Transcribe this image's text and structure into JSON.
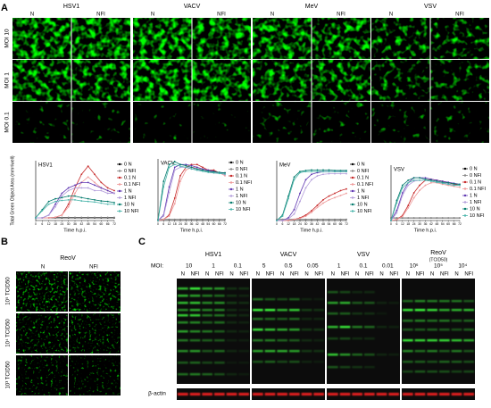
{
  "panels": {
    "a": "A",
    "b": "B",
    "c": "C"
  },
  "panel_a": {
    "viruses": [
      "HSV1",
      "VACV",
      "MeV",
      "VSV"
    ],
    "conditions": [
      "N",
      "NFI"
    ],
    "rows": [
      "MOI 10",
      "MOI 1",
      "MOI 0.1"
    ]
  },
  "panel_b": {
    "virus": "ReoV",
    "conditions": [
      "N",
      "NFI"
    ],
    "rows": [
      "10⁵ TCID50",
      "10⁴ TCID50",
      "10³ TCID50"
    ]
  },
  "blot": {
    "moi_label": "MOI:",
    "lane_labels": [
      "N",
      "NFI"
    ],
    "loading": "β-actin",
    "viruses": [
      {
        "name": "HSV1",
        "mois": [
          "10",
          "1",
          "0.1"
        ]
      },
      {
        "name": "VACV",
        "mois": [
          "5",
          "0.5",
          "0.05"
        ]
      },
      {
        "name": "VSV",
        "mois": [
          "1",
          "0.1",
          "0.01"
        ]
      },
      {
        "name": "ReoV",
        "unit": "(TCID50)",
        "mois": [
          "10⁶",
          "10⁵",
          "10⁴"
        ]
      }
    ]
  },
  "chart_data": [
    {
      "type": "line",
      "title": "HSV1",
      "y_label": "Total Green Object Area (mm²/well)",
      "x_label": "Time h.p.i.",
      "x": [
        0,
        6,
        12,
        18,
        24,
        30,
        36,
        42,
        48,
        54,
        60,
        66,
        72
      ],
      "xlim": [
        0,
        72
      ],
      "xticks": [
        0,
        6,
        12,
        18,
        24,
        30,
        36,
        42,
        48,
        54,
        60,
        66,
        72
      ],
      "ylim": [
        0,
        1.1
      ],
      "series": [
        {
          "name": "0 N",
          "color": "#000000",
          "values": [
            0.05,
            0.05,
            0.05,
            0.05,
            0.05,
            0.05,
            0.05,
            0.05,
            0.05,
            0.05,
            0.05,
            0.05,
            0.05
          ]
        },
        {
          "name": "0 NFI",
          "color": "#888888",
          "values": [
            0.05,
            0.05,
            0.05,
            0.06,
            0.06,
            0.06,
            0.06,
            0.06,
            0.06,
            0.06,
            0.06,
            0.06,
            0.06
          ]
        },
        {
          "name": "0.1 N",
          "color": "#c62828",
          "values": [
            0.05,
            0.05,
            0.05,
            0.06,
            0.1,
            0.3,
            0.6,
            0.85,
            1.0,
            0.85,
            0.7,
            0.6,
            0.55
          ]
        },
        {
          "name": "0.1 NFI",
          "color": "#ef9a9a",
          "values": [
            0.05,
            0.05,
            0.05,
            0.06,
            0.1,
            0.25,
            0.5,
            0.7,
            0.8,
            0.7,
            0.6,
            0.55,
            0.5
          ]
        },
        {
          "name": "1 N",
          "color": "#5e35b1",
          "values": [
            0.05,
            0.05,
            0.1,
            0.3,
            0.5,
            0.6,
            0.65,
            0.7,
            0.7,
            0.65,
            0.6,
            0.55,
            0.5
          ]
        },
        {
          "name": "1 NFI",
          "color": "#b39ddb",
          "values": [
            0.05,
            0.05,
            0.1,
            0.25,
            0.45,
            0.55,
            0.6,
            0.6,
            0.6,
            0.55,
            0.55,
            0.5,
            0.5
          ]
        },
        {
          "name": "10 N",
          "color": "#00796b",
          "values": [
            0.05,
            0.2,
            0.35,
            0.4,
            0.42,
            0.45,
            0.45,
            0.42,
            0.4,
            0.38,
            0.36,
            0.35,
            0.33
          ]
        },
        {
          "name": "10 NFI",
          "color": "#4db6ac",
          "values": [
            0.05,
            0.18,
            0.3,
            0.35,
            0.37,
            0.38,
            0.38,
            0.36,
            0.35,
            0.34,
            0.32,
            0.3,
            0.3
          ]
        }
      ]
    },
    {
      "type": "line",
      "title": "VACV",
      "x_label": "Time h.p.i.",
      "x": [
        0,
        6,
        12,
        18,
        24,
        30,
        36,
        42,
        48,
        54,
        60,
        66,
        72
      ],
      "xlim": [
        0,
        72
      ],
      "xticks": [
        0,
        6,
        12,
        18,
        24,
        30,
        36,
        42,
        48,
        54,
        60,
        66,
        72
      ],
      "ylim": [
        0,
        1.1
      ],
      "series": [
        {
          "name": "0 N",
          "color": "#000000",
          "values": [
            0.02,
            0.02,
            0.02,
            0.02,
            0.02,
            0.02,
            0.02,
            0.02,
            0.02,
            0.02,
            0.02,
            0.02,
            0.02
          ]
        },
        {
          "name": "0 NFI",
          "color": "#888888",
          "values": [
            0.02,
            0.02,
            0.02,
            0.02,
            0.02,
            0.02,
            0.02,
            0.02,
            0.02,
            0.02,
            0.02,
            0.02,
            0.02
          ]
        },
        {
          "name": "0.1 N",
          "color": "#c62828",
          "values": [
            0,
            0.02,
            0.1,
            0.4,
            0.8,
            0.95,
            1,
            1,
            0.95,
            0.9,
            0.9,
            0.85,
            0.85
          ]
        },
        {
          "name": "0.1 NFI",
          "color": "#ef9a9a",
          "values": [
            0,
            0.02,
            0.08,
            0.3,
            0.7,
            0.9,
            0.95,
            0.95,
            0.9,
            0.9,
            0.85,
            0.85,
            0.8
          ]
        },
        {
          "name": "1 N",
          "color": "#5e35b1",
          "values": [
            0,
            0.1,
            0.6,
            0.95,
            1,
            1,
            0.98,
            0.95,
            0.92,
            0.9,
            0.88,
            0.85,
            0.85
          ]
        },
        {
          "name": "1 NFI",
          "color": "#b39ddb",
          "values": [
            0,
            0.08,
            0.5,
            0.9,
            0.95,
            0.95,
            0.95,
            0.9,
            0.9,
            0.88,
            0.85,
            0.85,
            0.82
          ]
        },
        {
          "name": "10 N",
          "color": "#00796b",
          "values": [
            0,
            0.7,
            1.0,
            1.05,
            1.0,
            0.98,
            0.95,
            0.92,
            0.9,
            0.88,
            0.87,
            0.86,
            0.85
          ]
        },
        {
          "name": "10 NFI",
          "color": "#4db6ac",
          "values": [
            0,
            0.6,
            0.95,
            1.0,
            0.97,
            0.95,
            0.92,
            0.9,
            0.88,
            0.86,
            0.85,
            0.84,
            0.83
          ]
        }
      ]
    },
    {
      "type": "line",
      "title": "MeV",
      "x_label": "Time h.p.i.",
      "x": [
        0,
        6,
        12,
        18,
        24,
        30,
        36,
        42,
        48,
        54,
        60,
        66,
        72
      ],
      "xlim": [
        0,
        72
      ],
      "xticks": [
        0,
        6,
        12,
        18,
        24,
        30,
        36,
        42,
        48,
        54,
        60,
        66,
        72
      ],
      "ylim": [
        0,
        1.1
      ],
      "series": [
        {
          "name": "0 N",
          "color": "#000000",
          "values": [
            0.02,
            0.02,
            0.02,
            0.02,
            0.02,
            0.02,
            0.02,
            0.02,
            0.02,
            0.02,
            0.02,
            0.02,
            0.02
          ]
        },
        {
          "name": "0 NFI",
          "color": "#888888",
          "values": [
            0.02,
            0.02,
            0.02,
            0.02,
            0.02,
            0.02,
            0.02,
            0.02,
            0.02,
            0.02,
            0.02,
            0.02,
            0.02
          ]
        },
        {
          "name": "0.1 N",
          "color": "#c62828",
          "values": [
            0,
            0,
            0,
            0.02,
            0.05,
            0.1,
            0.18,
            0.28,
            0.38,
            0.45,
            0.5,
            0.55,
            0.58
          ]
        },
        {
          "name": "0.1 NFI",
          "color": "#ef9a9a",
          "values": [
            0,
            0,
            0,
            0.02,
            0.04,
            0.08,
            0.15,
            0.24,
            0.32,
            0.38,
            0.42,
            0.46,
            0.5
          ]
        },
        {
          "name": "1 N",
          "color": "#5e35b1",
          "values": [
            0,
            0,
            0.05,
            0.2,
            0.5,
            0.75,
            0.85,
            0.88,
            0.9,
            0.9,
            0.9,
            0.9,
            0.9
          ]
        },
        {
          "name": "1 NFI",
          "color": "#b39ddb",
          "values": [
            0,
            0,
            0.03,
            0.12,
            0.35,
            0.6,
            0.75,
            0.82,
            0.85,
            0.86,
            0.86,
            0.86,
            0.86
          ]
        },
        {
          "name": "10 N",
          "color": "#00796b",
          "values": [
            0,
            0.1,
            0.45,
            0.8,
            0.9,
            0.92,
            0.93,
            0.93,
            0.93,
            0.93,
            0.92,
            0.92,
            0.92
          ]
        },
        {
          "name": "10 NFI",
          "color": "#4db6ac",
          "values": [
            0,
            0.08,
            0.4,
            0.75,
            0.88,
            0.9,
            0.9,
            0.9,
            0.9,
            0.9,
            0.9,
            0.9,
            0.9
          ]
        }
      ]
    },
    {
      "type": "line",
      "title": "VSV",
      "x_label": "Time h.p.i.",
      "x": [
        0,
        6,
        12,
        18,
        24,
        30,
        36,
        42,
        48,
        54,
        60,
        66,
        72
      ],
      "xlim": [
        0,
        72
      ],
      "xticks": [
        0,
        6,
        12,
        18,
        24,
        30,
        36,
        42,
        48,
        54,
        60,
        66,
        72
      ],
      "ylim": [
        0,
        1.1
      ],
      "series": [
        {
          "name": "0 N",
          "color": "#000000",
          "values": [
            0.05,
            0.05,
            0.05,
            0.05,
            0.05,
            0.05,
            0.05,
            0.05,
            0.05,
            0.05,
            0.05,
            0.05,
            0.05
          ]
        },
        {
          "name": "0 NFI",
          "color": "#888888",
          "values": [
            0.05,
            0.05,
            0.05,
            0.05,
            0.05,
            0.05,
            0.05,
            0.05,
            0.05,
            0.05,
            0.05,
            0.05,
            0.05
          ]
        },
        {
          "name": "0.1 N",
          "color": "#c62828",
          "values": [
            0,
            0.02,
            0.1,
            0.3,
            0.55,
            0.7,
            0.8,
            0.82,
            0.8,
            0.78,
            0.75,
            0.72,
            0.7
          ]
        },
        {
          "name": "0.1 NFI",
          "color": "#ef9a9a",
          "values": [
            0,
            0.02,
            0.08,
            0.25,
            0.45,
            0.6,
            0.7,
            0.75,
            0.75,
            0.72,
            0.7,
            0.68,
            0.66
          ]
        },
        {
          "name": "1 N",
          "color": "#5e35b1",
          "values": [
            0,
            0.2,
            0.55,
            0.75,
            0.85,
            0.85,
            0.85,
            0.82,
            0.8,
            0.78,
            0.76,
            0.74,
            0.72
          ]
        },
        {
          "name": "1 NFI",
          "color": "#b39ddb",
          "values": [
            0,
            0.15,
            0.5,
            0.7,
            0.78,
            0.8,
            0.8,
            0.78,
            0.76,
            0.75,
            0.73,
            0.7,
            0.7
          ]
        },
        {
          "name": "10 N",
          "color": "#00796b",
          "values": [
            0,
            0.4,
            0.7,
            0.8,
            0.85,
            0.85,
            0.82,
            0.8,
            0.78,
            0.76,
            0.75,
            0.73,
            0.72
          ]
        },
        {
          "name": "10 NFI",
          "color": "#4db6ac",
          "values": [
            0,
            0.35,
            0.65,
            0.75,
            0.8,
            0.8,
            0.8,
            0.78,
            0.76,
            0.74,
            0.72,
            0.7,
            0.7
          ]
        }
      ]
    }
  ]
}
